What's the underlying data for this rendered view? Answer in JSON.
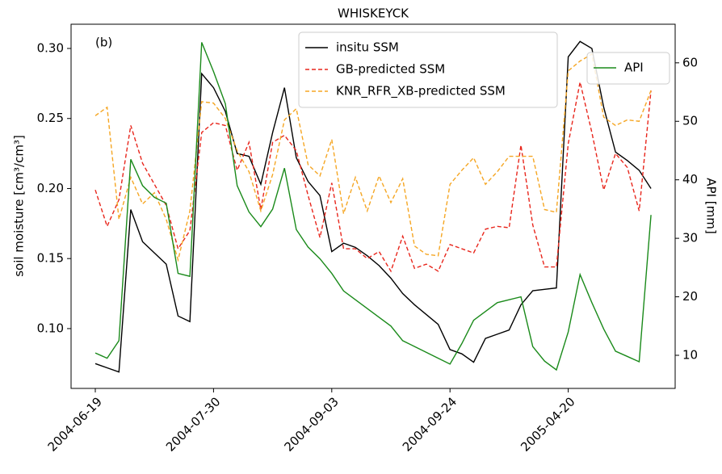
{
  "chart_data": {
    "type": "line",
    "title": "WHISKEYCK",
    "annotation": "(b)",
    "y_label": "soil moisture [cm³/cm³]",
    "y2_label": "API [mm]",
    "categories": [
      "2004-06-19",
      null,
      null,
      null,
      null,
      null,
      null,
      null,
      null,
      null,
      "2004-07-30",
      null,
      null,
      null,
      null,
      null,
      null,
      null,
      null,
      null,
      "2004-09-03",
      null,
      null,
      null,
      null,
      null,
      null,
      null,
      null,
      null,
      "2004-09-24",
      null,
      null,
      null,
      null,
      null,
      null,
      null,
      null,
      null,
      "2005-04-20",
      null,
      null,
      null,
      null,
      null,
      null,
      null
    ],
    "ylim": [
      0.0573,
      0.3173
    ],
    "yticks": [
      {
        "value": 0.1,
        "label": "0.10"
      },
      {
        "value": 0.15,
        "label": "0.15"
      },
      {
        "value": 0.2,
        "label": "0.20"
      },
      {
        "value": 0.25,
        "label": "0.25"
      },
      {
        "value": 0.3,
        "label": "0.30"
      }
    ],
    "y2lim": [
      4.34,
      66.6
    ],
    "y2ticks": [
      10,
      20,
      30,
      40,
      50,
      60
    ],
    "series": [
      {
        "name": "insitu SSM",
        "color": "#000000",
        "dash": false,
        "values": [
          0.075,
          0.072,
          0.069,
          0.185,
          0.162,
          0.154,
          0.146,
          0.109,
          0.105,
          0.282,
          0.272,
          0.255,
          0.225,
          0.223,
          0.203,
          0.24,
          0.272,
          0.222,
          0.205,
          0.195,
          0.155,
          0.161,
          0.158,
          0.152,
          0.145,
          0.136,
          0.125,
          0.117,
          0.11,
          0.103,
          0.085,
          0.082,
          0.076,
          0.093,
          0.096,
          0.099,
          0.117,
          0.127,
          0.128,
          0.129,
          0.294,
          0.305,
          0.3,
          0.258,
          0.226,
          0.22,
          0.213,
          0.2
        ]
      },
      {
        "name": "GB-predicted SSM",
        "color": "#e8261c",
        "dash": true,
        "values": [
          0.199,
          0.173,
          0.192,
          0.245,
          0.218,
          0.203,
          0.188,
          0.157,
          0.17,
          0.24,
          0.247,
          0.245,
          0.213,
          0.233,
          0.185,
          0.233,
          0.238,
          0.227,
          0.195,
          0.165,
          0.204,
          0.157,
          0.157,
          0.15,
          0.155,
          0.141,
          0.166,
          0.143,
          0.146,
          0.141,
          0.16,
          0.157,
          0.154,
          0.171,
          0.173,
          0.172,
          0.231,
          0.174,
          0.144,
          0.144,
          0.232,
          0.276,
          0.24,
          0.199,
          0.225,
          0.215,
          0.184,
          0.27
        ]
      },
      {
        "name": "KNR_RFR_XB-predicted SSM",
        "color": "#f5a623",
        "dash": true,
        "values": [
          0.252,
          0.258,
          0.178,
          0.208,
          0.189,
          0.197,
          0.178,
          0.149,
          0.184,
          0.262,
          0.261,
          0.25,
          0.227,
          0.212,
          0.184,
          0.21,
          0.249,
          0.257,
          0.217,
          0.209,
          0.235,
          0.182,
          0.208,
          0.184,
          0.209,
          0.19,
          0.207,
          0.159,
          0.153,
          0.152,
          0.203,
          0.213,
          0.222,
          0.203,
          0.212,
          0.223,
          0.223,
          0.223,
          0.185,
          0.183,
          0.284,
          0.291,
          0.296,
          0.251,
          0.245,
          0.249,
          0.248,
          0.27
        ]
      },
      {
        "name": "API",
        "color": "#1a8a1a",
        "dash": false,
        "axis": "y2",
        "values": [
          10.4,
          9.5,
          12.5,
          43.5,
          39,
          37,
          36,
          24,
          23.5,
          63.5,
          58.5,
          53,
          39,
          34.5,
          32,
          35,
          42,
          31.5,
          28.5,
          26.5,
          24,
          21,
          19.5,
          18,
          16.5,
          15,
          12.5,
          11.5,
          10.5,
          9.5,
          8.5,
          12,
          16,
          17.5,
          19,
          19.5,
          20,
          11.5,
          9,
          7.5,
          14,
          23.8,
          19,
          14.5,
          10.7,
          9.8,
          8.9,
          34
        ]
      }
    ]
  }
}
